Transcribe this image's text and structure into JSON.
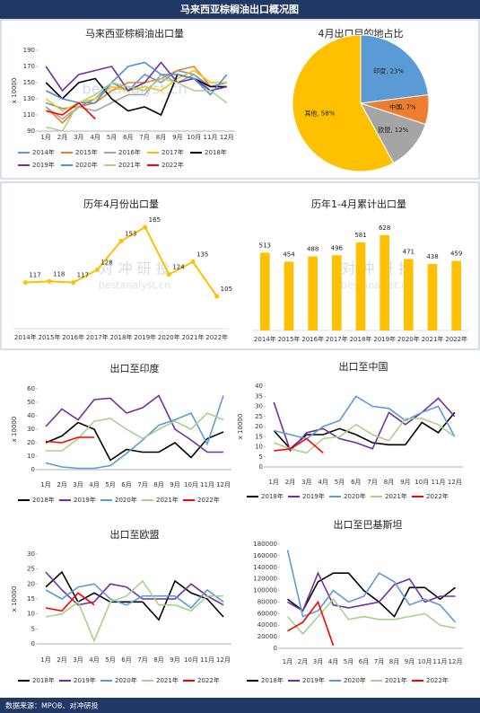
{
  "header": "马来西亚棕榈油出口概况图",
  "source": "数据来源：MPOB、对冲研投",
  "chart_data": [
    {
      "type": "line",
      "title": "马来西亚棕榈油出口量",
      "ylabel": "x 10000",
      "watermark": [
        "bestanalyst.cn"
      ],
      "categories": [
        "1月",
        "2月",
        "3月",
        "4月",
        "5月",
        "6月",
        "7月",
        "8月",
        "9月",
        "10月",
        "11月",
        "12月"
      ],
      "ylim": [
        90,
        190
      ],
      "yticks": [
        90,
        110,
        130,
        150,
        170,
        190
      ],
      "series": [
        {
          "name": "2014年",
          "color": "#5b9bd5",
          "values": [
            125,
            118,
            120,
            130,
            150,
            140,
            160,
            150,
            165,
            160,
            145,
            150
          ]
        },
        {
          "name": "2015年",
          "color": "#ed7d31",
          "values": [
            120,
            100,
            120,
            125,
            140,
            150,
            150,
            155,
            165,
            170,
            145,
            145
          ]
        },
        {
          "name": "2016年",
          "color": "#a5a5a5",
          "values": [
            120,
            105,
            120,
            115,
            125,
            135,
            135,
            160,
            150,
            160,
            140,
            145
          ]
        },
        {
          "name": "2017年",
          "color": "#ffc000",
          "values": [
            130,
            115,
            125,
            130,
            145,
            140,
            145,
            140,
            155,
            165,
            150,
            150
          ]
        },
        {
          "name": "2018年",
          "color": "#000000",
          "values": [
            150,
            130,
            150,
            155,
            130,
            115,
            120,
            110,
            160,
            155,
            145,
            145
          ]
        },
        {
          "name": "2019年",
          "color": "#7030a0",
          "values": [
            170,
            140,
            160,
            165,
            170,
            140,
            150,
            175,
            150,
            155,
            140,
            145
          ]
        },
        {
          "name": "2020年",
          "color": "#4a90d9",
          "values": [
            140,
            130,
            125,
            125,
            150,
            170,
            175,
            160,
            160,
            155,
            135,
            160
          ]
        },
        {
          "name": "2021年",
          "color": "#a9d18e",
          "values": [
            95,
            90,
            125,
            135,
            150,
            145,
            140,
            155,
            150,
            140,
            140,
            125
          ]
        },
        {
          "name": "2022年",
          "color": "#ff0000",
          "values": [
            115,
            110,
            125,
            105,
            null,
            null,
            null,
            null,
            null,
            null,
            null,
            null
          ]
        }
      ]
    },
    {
      "type": "pie",
      "title": "4月出口目的地占比",
      "values": [
        23,
        7,
        12,
        58
      ],
      "value_labels": [
        "印度, 23%",
        "中国, 7%",
        "欧盟, 12%",
        "其他, 58%"
      ],
      "colors": [
        "#5b9bd5",
        "#ed7d31",
        "#a5a5a5",
        "#ffc000"
      ]
    },
    {
      "type": "line",
      "title": "历年4月份出口量",
      "color": "#ffc000",
      "watermark": [
        "对 冲 研 投",
        "bestanalyst.cn"
      ],
      "categories": [
        "2014年",
        "2015年",
        "2016年",
        "2017年",
        "2018年",
        "2019年",
        "2020年",
        "2021年",
        "2022年"
      ],
      "values": [
        117,
        118,
        117,
        128,
        153,
        165,
        124,
        135,
        105
      ]
    },
    {
      "type": "bar",
      "title": "历年1-4月累计出口量",
      "color": "#ffc000",
      "watermark": [
        "对 冲 研 投",
        "bestanalyst.cn"
      ],
      "categories": [
        "2014年",
        "2015年",
        "2016年",
        "2017年",
        "2018年",
        "2019年",
        "2020年",
        "2021年",
        "2022年"
      ],
      "values": [
        513,
        454,
        488,
        496,
        581,
        628,
        471,
        438,
        459
      ]
    },
    {
      "type": "line",
      "title": "出口至印度",
      "ylabel": "x 10000",
      "categories": [
        "1月",
        "2月",
        "3月",
        "4月",
        "5月",
        "6月",
        "7月",
        "8月",
        "9月",
        "10月",
        "11月",
        "12月"
      ],
      "ylim": [
        0,
        60
      ],
      "yticks": [
        0,
        10,
        20,
        30,
        40,
        50,
        60
      ],
      "series": [
        {
          "name": "2018年",
          "color": "#000000",
          "values": [
            20,
            25,
            35,
            30,
            7,
            15,
            13,
            13,
            20,
            9,
            23,
            28
          ]
        },
        {
          "name": "2019年",
          "color": "#7030a0",
          "values": [
            32,
            45,
            37,
            52,
            53,
            42,
            46,
            55,
            30,
            22,
            13,
            13
          ]
        },
        {
          "name": "2020年",
          "color": "#5b9bd5",
          "values": [
            5,
            2,
            1,
            1,
            3,
            12,
            22,
            33,
            37,
            42,
            19,
            55
          ]
        },
        {
          "name": "2021年",
          "color": "#a9d18e",
          "values": [
            14,
            14,
            23,
            36,
            38,
            30,
            23,
            30,
            36,
            30,
            42,
            37
          ]
        },
        {
          "name": "2022年",
          "color": "#ff0000",
          "values": [
            21,
            20,
            24,
            24,
            null,
            null,
            null,
            null,
            null,
            null,
            null,
            null
          ]
        }
      ]
    },
    {
      "type": "line",
      "title": "出口至中国",
      "ylabel": "x 10000",
      "categories": [
        "1月",
        "2月",
        "3月",
        "4月",
        "5月",
        "6月",
        "7月",
        "8月",
        "9月",
        "10月",
        "11月",
        "12月"
      ],
      "ylim": [
        0,
        40
      ],
      "yticks": [
        0,
        5,
        10,
        15,
        20,
        25,
        30,
        35,
        40
      ],
      "series": [
        {
          "name": "2018年",
          "color": "#000000",
          "values": [
            18,
            9,
            16,
            16,
            19,
            16,
            12,
            11,
            11,
            22,
            17,
            27
          ]
        },
        {
          "name": "2019年",
          "color": "#7030a0",
          "values": [
            32,
            8,
            17,
            19,
            14,
            12,
            9,
            27,
            21,
            27,
            34,
            25
          ]
        },
        {
          "name": "2020年",
          "color": "#5b9bd5",
          "values": [
            18,
            16,
            14,
            20,
            23,
            35,
            30,
            29,
            23,
            27,
            30,
            15
          ]
        },
        {
          "name": "2021年",
          "color": "#a9d18e",
          "values": [
            12,
            9,
            7,
            14,
            15,
            21,
            16,
            13,
            24,
            24,
            21,
            15
          ]
        },
        {
          "name": "2022年",
          "color": "#ff0000",
          "values": [
            8,
            9,
            14,
            7,
            null,
            null,
            null,
            null,
            null,
            null,
            null,
            null
          ]
        }
      ]
    },
    {
      "type": "line",
      "title": "出口至欧盟",
      "ylabel": "x 10000",
      "categories": [
        "1月",
        "2月",
        "3月",
        "4月",
        "5月",
        "6月",
        "7月",
        "8月",
        "9月",
        "10月",
        "11月",
        "12月"
      ],
      "ylim": [
        0,
        30
      ],
      "yticks": [
        0,
        5,
        10,
        15,
        20,
        25,
        30
      ],
      "series": [
        {
          "name": "2018年",
          "color": "#000000",
          "values": [
            19,
            24,
            14,
            17,
            14,
            14,
            14,
            8,
            21,
            17,
            15,
            9
          ]
        },
        {
          "name": "2019年",
          "color": "#7030a0",
          "values": [
            24,
            18,
            13,
            14,
            20,
            19,
            15,
            15,
            15,
            20,
            16,
            13
          ]
        },
        {
          "name": "2020年",
          "color": "#5b9bd5",
          "values": [
            18,
            15,
            19,
            20,
            15,
            13,
            16,
            16,
            16,
            12,
            18,
            14
          ]
        },
        {
          "name": "2021年",
          "color": "#a9d18e",
          "values": [
            9,
            10,
            14,
            1,
            14,
            16,
            21,
            13,
            13,
            11,
            16,
            16
          ]
        },
        {
          "name": "2022年",
          "color": "#ff0000",
          "values": [
            12,
            11,
            17,
            13,
            null,
            null,
            null,
            null,
            null,
            null,
            null,
            null
          ]
        }
      ]
    },
    {
      "type": "line",
      "title": "出口至巴基斯坦",
      "categories": [
        "1月",
        "2月",
        "3月",
        "4月",
        "5月",
        "6月",
        "7月",
        "8月",
        "9月",
        "10月",
        "11月",
        "12月"
      ],
      "ylim": [
        0,
        180000
      ],
      "yticks": [
        0,
        20000,
        40000,
        60000,
        80000,
        100000,
        120000,
        140000,
        160000,
        180000
      ],
      "series": [
        {
          "name": "2018年",
          "color": "#000000",
          "values": [
            85000,
            65000,
            115000,
            130000,
            130000,
            100000,
            80000,
            55000,
            105000,
            105000,
            85000,
            105000
          ]
        },
        {
          "name": "2019年",
          "color": "#7030a0",
          "values": [
            80000,
            65000,
            130000,
            75000,
            70000,
            75000,
            80000,
            110000,
            120000,
            80000,
            90000,
            90000
          ]
        },
        {
          "name": "2020年",
          "color": "#5b9bd5",
          "values": [
            170000,
            55000,
            65000,
            100000,
            80000,
            90000,
            130000,
            115000,
            75000,
            85000,
            75000,
            45000
          ]
        },
        {
          "name": "2021年",
          "color": "#a9d18e",
          "values": [
            55000,
            25000,
            55000,
            85000,
            50000,
            55000,
            50000,
            50000,
            55000,
            60000,
            40000,
            35000
          ]
        },
        {
          "name": "2022年",
          "color": "#ff0000",
          "values": [
            30000,
            45000,
            80000,
            5000,
            null,
            null,
            null,
            null,
            null,
            null,
            null,
            null
          ]
        }
      ]
    }
  ]
}
